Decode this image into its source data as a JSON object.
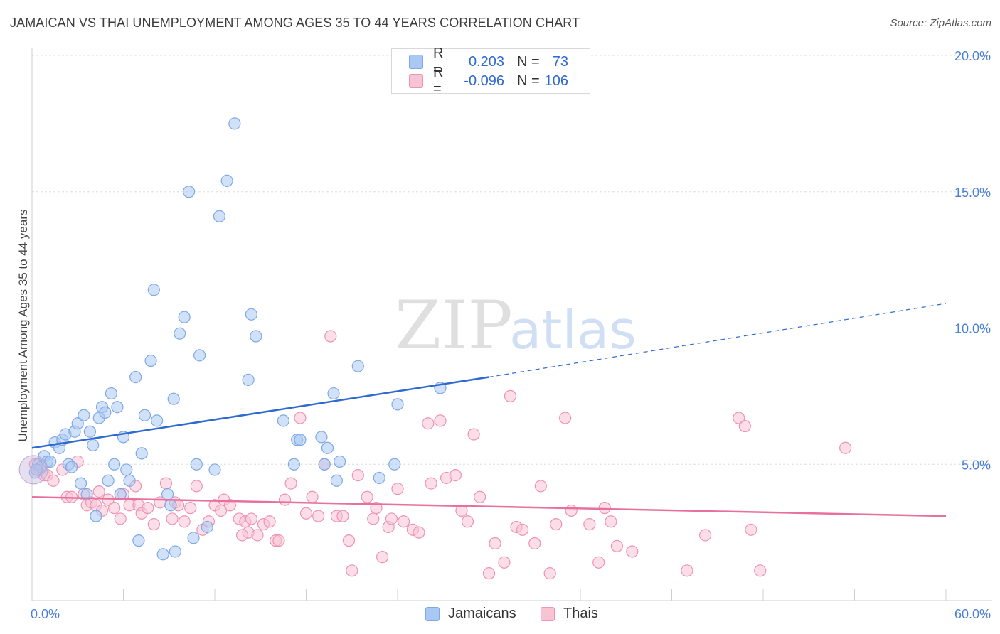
{
  "title": "JAMAICAN VS THAI UNEMPLOYMENT AMONG AGES 35 TO 44 YEARS CORRELATION CHART",
  "source": "Source: ZipAtlas.com",
  "watermark": {
    "zip": "ZIP",
    "atlas": "atlas"
  },
  "legend": {
    "rows": [
      {
        "r_label": "R =",
        "r_value": "0.203",
        "n_label": "N =",
        "n_value": "73",
        "color": "#a9c8f3",
        "border": "#7ea8e8"
      },
      {
        "r_label": "R =",
        "r_value": "-0.096",
        "n_label": "N =",
        "n_value": "106",
        "color": "#f8c3d3",
        "border": "#ee93b1"
      }
    ]
  },
  "bottom_legend": [
    {
      "label": "Jamaicans",
      "color": "#a9c8f3",
      "border": "#7ea8e8"
    },
    {
      "label": "Thais",
      "color": "#f8c3d3",
      "border": "#ee93b1"
    }
  ],
  "chart_data": {
    "type": "scatter",
    "title": "JAMAICAN VS THAI UNEMPLOYMENT AMONG AGES 35 TO 44 YEARS CORRELATION CHART",
    "xlabel": "",
    "ylabel": "Unemployment Among Ages 35 to 44 years",
    "xlim": [
      0,
      60
    ],
    "ylim": [
      0,
      20
    ],
    "x_ticks": [
      {
        "value": 0,
        "label": "0.0%"
      },
      {
        "value": 60,
        "label": "60.0%"
      }
    ],
    "y_ticks": [
      {
        "value": 5,
        "label": "5.0%"
      },
      {
        "value": 10,
        "label": "10.0%"
      },
      {
        "value": 15,
        "label": "15.0%"
      },
      {
        "value": 20,
        "label": "20.0%"
      }
    ],
    "grid": true,
    "legend_position": "top-center",
    "series": [
      {
        "name": "Jamaicans",
        "color": "#a9c8f3",
        "stroke": "#7ea8e8",
        "trend": {
          "x": [
            0,
            30
          ],
          "y": [
            5.6,
            8.2
          ],
          "dashed_extension_to": [
            60,
            10.9
          ],
          "color": "#2f6ad0"
        },
        "points": [
          [
            0.2,
            4.7
          ],
          [
            0.4,
            5.0
          ],
          [
            0.6,
            4.9
          ],
          [
            0.8,
            5.3
          ],
          [
            1.0,
            5.1
          ],
          [
            1.2,
            5.1
          ],
          [
            1.5,
            5.8
          ],
          [
            1.8,
            5.6
          ],
          [
            2.0,
            5.9
          ],
          [
            2.2,
            6.1
          ],
          [
            2.4,
            5.0
          ],
          [
            2.6,
            4.9
          ],
          [
            2.8,
            6.2
          ],
          [
            3.0,
            6.5
          ],
          [
            3.2,
            4.3
          ],
          [
            3.4,
            6.8
          ],
          [
            3.6,
            3.9
          ],
          [
            3.8,
            6.2
          ],
          [
            4.0,
            5.7
          ],
          [
            4.2,
            3.1
          ],
          [
            4.4,
            6.7
          ],
          [
            4.6,
            7.1
          ],
          [
            4.8,
            6.9
          ],
          [
            5.0,
            4.4
          ],
          [
            5.2,
            7.6
          ],
          [
            5.4,
            5.0
          ],
          [
            5.6,
            7.1
          ],
          [
            6.0,
            6.0
          ],
          [
            6.2,
            4.8
          ],
          [
            6.4,
            4.4
          ],
          [
            6.8,
            8.2
          ],
          [
            7.0,
            2.2
          ],
          [
            7.2,
            5.4
          ],
          [
            7.4,
            6.8
          ],
          [
            7.8,
            8.8
          ],
          [
            8.0,
            11.4
          ],
          [
            8.2,
            6.6
          ],
          [
            8.6,
            1.7
          ],
          [
            8.9,
            3.9
          ],
          [
            9.1,
            3.5
          ],
          [
            9.3,
            7.4
          ],
          [
            9.7,
            9.8
          ],
          [
            10.0,
            10.4
          ],
          [
            10.3,
            15.0
          ],
          [
            10.6,
            2.3
          ],
          [
            10.8,
            5.0
          ],
          [
            11.0,
            9.0
          ],
          [
            11.5,
            2.7
          ],
          [
            12.0,
            4.8
          ],
          [
            12.3,
            14.1
          ],
          [
            12.8,
            15.4
          ],
          [
            13.3,
            17.5
          ],
          [
            14.2,
            8.1
          ],
          [
            14.4,
            10.5
          ],
          [
            14.7,
            9.7
          ],
          [
            16.5,
            6.6
          ],
          [
            17.2,
            5.0
          ],
          [
            17.4,
            5.9
          ],
          [
            17.6,
            5.9
          ],
          [
            19.0,
            6.0
          ],
          [
            19.2,
            5.0
          ],
          [
            19.4,
            5.6
          ],
          [
            19.8,
            7.6
          ],
          [
            20.0,
            4.4
          ],
          [
            20.2,
            5.1
          ],
          [
            21.4,
            8.6
          ],
          [
            22.8,
            4.5
          ],
          [
            23.8,
            5.0
          ],
          [
            24.0,
            7.2
          ],
          [
            26.8,
            7.8
          ],
          [
            9.4,
            1.8
          ],
          [
            5.8,
            3.9
          ],
          [
            0.3,
            4.8
          ]
        ]
      },
      {
        "name": "Thais",
        "color": "#f8c3d3",
        "stroke": "#ee93b1",
        "trend": {
          "x": [
            0,
            60
          ],
          "y": [
            3.8,
            3.1
          ],
          "color": "#e8709c"
        },
        "points": [
          [
            0.2,
            5.0
          ],
          [
            0.5,
            4.8
          ],
          [
            0.8,
            4.6
          ],
          [
            1.0,
            4.6
          ],
          [
            1.4,
            4.4
          ],
          [
            2.0,
            4.8
          ],
          [
            2.3,
            3.8
          ],
          [
            2.6,
            3.8
          ],
          [
            3.0,
            5.1
          ],
          [
            3.4,
            3.9
          ],
          [
            3.6,
            3.5
          ],
          [
            3.9,
            3.6
          ],
          [
            4.2,
            3.5
          ],
          [
            4.4,
            4.0
          ],
          [
            4.6,
            3.3
          ],
          [
            5.0,
            3.7
          ],
          [
            5.4,
            3.4
          ],
          [
            5.8,
            3.0
          ],
          [
            6.0,
            3.9
          ],
          [
            6.4,
            3.5
          ],
          [
            6.8,
            4.2
          ],
          [
            7.0,
            3.5
          ],
          [
            7.2,
            3.2
          ],
          [
            7.6,
            3.4
          ],
          [
            8.0,
            2.8
          ],
          [
            8.4,
            3.6
          ],
          [
            8.8,
            4.3
          ],
          [
            9.2,
            3.0
          ],
          [
            9.4,
            3.6
          ],
          [
            9.6,
            3.5
          ],
          [
            10.0,
            2.9
          ],
          [
            10.4,
            3.4
          ],
          [
            10.8,
            4.2
          ],
          [
            11.2,
            2.6
          ],
          [
            11.6,
            2.9
          ],
          [
            12.0,
            3.5
          ],
          [
            12.4,
            3.3
          ],
          [
            12.6,
            3.7
          ],
          [
            13.0,
            3.5
          ],
          [
            13.6,
            3.0
          ],
          [
            14.0,
            2.9
          ],
          [
            14.2,
            2.5
          ],
          [
            14.4,
            3.0
          ],
          [
            14.8,
            2.4
          ],
          [
            15.2,
            2.8
          ],
          [
            15.6,
            2.9
          ],
          [
            16.0,
            2.2
          ],
          [
            16.2,
            2.2
          ],
          [
            16.6,
            3.7
          ],
          [
            17.0,
            4.3
          ],
          [
            17.6,
            6.7
          ],
          [
            18.0,
            3.2
          ],
          [
            18.4,
            3.8
          ],
          [
            18.8,
            3.1
          ],
          [
            19.2,
            5.0
          ],
          [
            19.6,
            9.7
          ],
          [
            20.0,
            3.1
          ],
          [
            20.4,
            3.1
          ],
          [
            20.8,
            2.2
          ],
          [
            21.4,
            4.6
          ],
          [
            21.0,
            1.1
          ],
          [
            22.0,
            3.8
          ],
          [
            22.4,
            3.0
          ],
          [
            22.6,
            3.4
          ],
          [
            23.0,
            1.6
          ],
          [
            23.4,
            2.7
          ],
          [
            23.6,
            3.0
          ],
          [
            24.0,
            4.1
          ],
          [
            24.4,
            2.9
          ],
          [
            25.0,
            2.6
          ],
          [
            25.4,
            2.5
          ],
          [
            26.0,
            6.5
          ],
          [
            26.2,
            4.3
          ],
          [
            26.8,
            6.6
          ],
          [
            27.2,
            4.5
          ],
          [
            27.8,
            4.6
          ],
          [
            28.2,
            3.3
          ],
          [
            28.6,
            2.9
          ],
          [
            29.0,
            6.1
          ],
          [
            29.4,
            3.8
          ],
          [
            30.0,
            1.0
          ],
          [
            30.4,
            2.1
          ],
          [
            31.0,
            1.4
          ],
          [
            31.4,
            7.5
          ],
          [
            31.8,
            2.7
          ],
          [
            32.2,
            2.6
          ],
          [
            33.0,
            2.1
          ],
          [
            33.4,
            4.2
          ],
          [
            34.0,
            1.0
          ],
          [
            34.4,
            2.8
          ],
          [
            35.0,
            6.7
          ],
          [
            35.4,
            3.3
          ],
          [
            36.6,
            2.8
          ],
          [
            37.2,
            1.4
          ],
          [
            37.6,
            3.4
          ],
          [
            38.0,
            2.9
          ],
          [
            38.4,
            2.0
          ],
          [
            39.4,
            1.8
          ],
          [
            43.0,
            1.1
          ],
          [
            44.2,
            2.4
          ],
          [
            46.4,
            6.7
          ],
          [
            46.8,
            6.4
          ],
          [
            47.2,
            2.6
          ],
          [
            47.8,
            1.1
          ],
          [
            53.4,
            5.6
          ],
          [
            13.8,
            2.4
          ]
        ]
      }
    ]
  }
}
